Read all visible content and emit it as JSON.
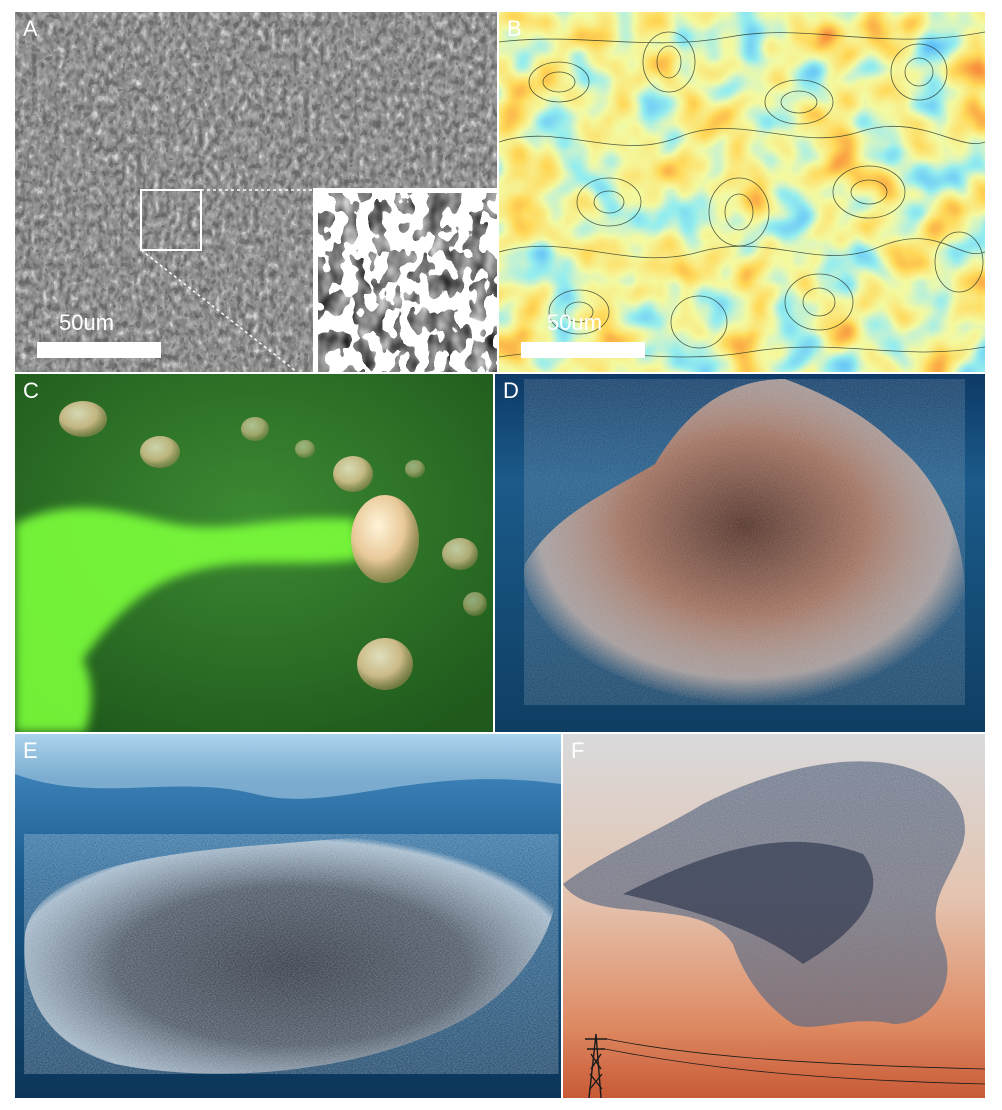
{
  "figure": {
    "panels": [
      {
        "label": "A",
        "subject": "active nematic bacterial suspension (microscopy)",
        "scale_bar": "50um"
      },
      {
        "label": "B",
        "subject": "vorticity field with streamlines",
        "scale_bar": "50um"
      },
      {
        "label": "C",
        "subject": "jellyfish with green dye wake"
      },
      {
        "label": "D",
        "subject": "dense swarm / bait ball underwater"
      },
      {
        "label": "E",
        "subject": "school of fish under water surface"
      },
      {
        "label": "F",
        "subject": "starling murmuration at sunset with power pylon"
      }
    ]
  },
  "colors": {
    "panel_label": "#ffffff",
    "background": "#ffffff",
    "green_water": "#2f7a2a",
    "dye_green": "#7cff3a",
    "deep_blue": "#14486e",
    "sunset_top": "#cfd2d6",
    "sunset_bottom": "#d86a40"
  }
}
